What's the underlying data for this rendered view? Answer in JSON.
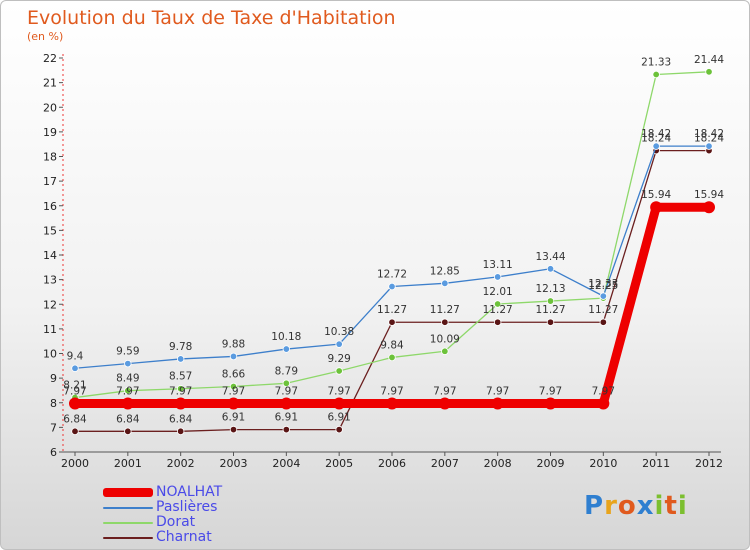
{
  "header": {
    "title": "Evolution du Taux de Taxe d'Habitation",
    "unit": "(en %)"
  },
  "logo": {
    "text": "Proxiti",
    "letter_colors": [
      "#2f7fd0",
      "#e8a41c",
      "#e05a1e",
      "#2f7fd0",
      "#7cbf2f",
      "#e05a1e",
      "#7cbf2f"
    ]
  },
  "chart_data": {
    "type": "line",
    "x": [
      "2000",
      "2001",
      "2002",
      "2003",
      "2004",
      "2005",
      "2006",
      "2007",
      "2008",
      "2009",
      "2010",
      "2011",
      "2012"
    ],
    "ylim": [
      6,
      22
    ],
    "yticks": [
      6,
      7,
      8,
      9,
      10,
      11,
      12,
      13,
      14,
      15,
      16,
      17,
      18,
      19,
      20,
      21,
      22
    ],
    "grid": false,
    "legend_position": "bottom-left",
    "series": [
      {
        "name": "NOALHAT",
        "color": "#ee0000",
        "width": 9,
        "labels": [
          "",
          "",
          "",
          "",
          "",
          "",
          "7.97",
          "7.97",
          "7.97",
          "7.97",
          "7.97",
          "15.94",
          "15.94"
        ],
        "values": [
          7.97,
          7.97,
          7.97,
          7.97,
          7.97,
          7.97,
          7.97,
          7.97,
          7.97,
          7.97,
          7.97,
          15.94,
          15.94
        ]
      },
      {
        "name": "Paslières",
        "color": "#3d7fcb",
        "marker": "#5a9be0",
        "width": 1.3,
        "labels": [
          "9.4",
          "9.59",
          "9.78",
          "9.88",
          "10.18",
          "10.38",
          "12.72",
          "12.85",
          "13.11",
          "13.44",
          "12.33",
          "18.42",
          "18.42"
        ],
        "values": [
          9.4,
          9.59,
          9.78,
          9.88,
          10.18,
          10.38,
          12.72,
          12.85,
          13.11,
          13.44,
          12.33,
          18.42,
          18.42
        ]
      },
      {
        "name": "Dorat",
        "color": "#8ed86a",
        "marker": "#6cc23a",
        "width": 1.3,
        "labels": [
          "8.21",
          "8.49",
          "8.57",
          "8.66",
          "8.79",
          "9.29",
          "9.84",
          "10.09",
          "12.01",
          "12.13",
          "12.25",
          "21.33",
          "21.44"
        ],
        "values": [
          8.21,
          8.49,
          8.57,
          8.66,
          8.79,
          9.29,
          9.84,
          10.09,
          12.01,
          12.13,
          12.25,
          21.33,
          21.44
        ]
      },
      {
        "name": "Charnat",
        "color": "#6b1f1f",
        "marker": "#5a1515",
        "width": 1.3,
        "labels": [
          "6.84",
          "6.84",
          "6.84",
          "6.91",
          "6.91",
          "6.91",
          "11.27",
          "11.27",
          "11.27",
          "11.27",
          "11.27",
          "18.24",
          "18.24"
        ],
        "values": [
          6.84,
          6.84,
          6.84,
          6.91,
          6.91,
          6.91,
          11.27,
          11.27,
          11.27,
          11.27,
          11.27,
          18.24,
          18.24
        ]
      }
    ],
    "extra_labels": [
      {
        "series": 0,
        "index": 0,
        "text": "7.97"
      },
      {
        "series": 0,
        "index": 1,
        "text": "7.97"
      },
      {
        "series": 0,
        "index": 2,
        "text": "7.97"
      },
      {
        "series": 0,
        "index": 3,
        "text": "7.97"
      },
      {
        "series": 0,
        "index": 4,
        "text": "7.97"
      },
      {
        "series": 0,
        "index": 5,
        "text": "7.97"
      }
    ]
  },
  "legend": {
    "items": [
      {
        "label": "NOALHAT",
        "color": "#ee0000",
        "thickness": 9
      },
      {
        "label": "Paslières",
        "color": "#3d7fcb",
        "thickness": 2
      },
      {
        "label": "Dorat",
        "color": "#8ed86a",
        "thickness": 2
      },
      {
        "label": "Charnat",
        "color": "#6b1f1f",
        "thickness": 2
      }
    ]
  }
}
